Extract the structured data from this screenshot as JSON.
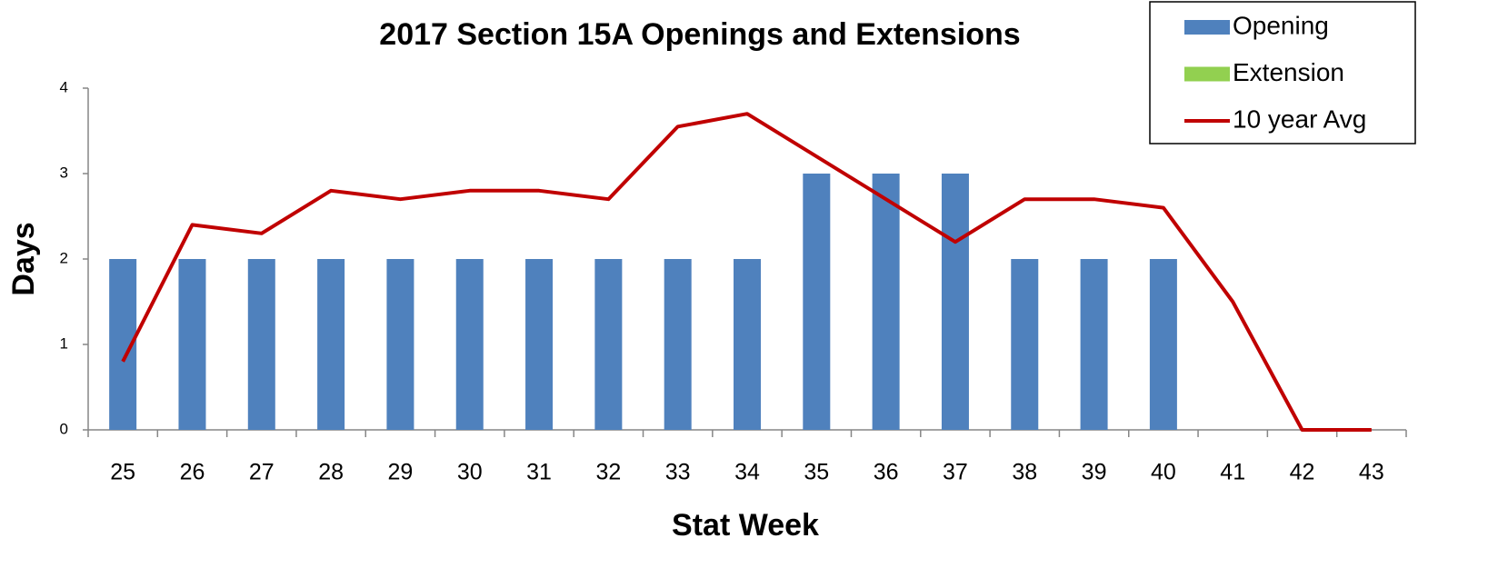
{
  "chart_data": {
    "type": "bar",
    "title": "2017 Section 15A Openings and Extensions",
    "x_label": "Stat Week",
    "y_label": "Days",
    "categories": [
      "25",
      "26",
      "27",
      "28",
      "29",
      "30",
      "31",
      "32",
      "33",
      "34",
      "35",
      "36",
      "37",
      "38",
      "39",
      "40",
      "41",
      "42",
      "43"
    ],
    "series": [
      {
        "name": "Opening",
        "type": "bar",
        "color": "#4f81bd",
        "values": [
          2,
          2,
          2,
          2,
          2,
          2,
          2,
          2,
          2,
          2,
          3,
          3,
          3,
          2,
          2,
          2,
          0,
          0,
          0
        ]
      },
      {
        "name": "Extension",
        "type": "bar",
        "color": "#92d050",
        "values": [
          0,
          0,
          0,
          0,
          0,
          0,
          0,
          0,
          0,
          0,
          0,
          0,
          0,
          0,
          0,
          0,
          0,
          0,
          0
        ]
      },
      {
        "name": "10 year Avg",
        "type": "line",
        "color": "#c00000",
        "values": [
          0.8,
          2.4,
          2.3,
          2.8,
          2.7,
          2.8,
          2.8,
          2.7,
          3.55,
          3.7,
          3.2,
          2.7,
          2.2,
          2.7,
          2.7,
          2.6,
          1.5,
          0,
          0
        ]
      }
    ],
    "ylim": [
      0,
      4
    ],
    "yticks": [
      0,
      1,
      2,
      3,
      4
    ],
    "grid": false,
    "legend": "top-right",
    "stacked": true
  }
}
